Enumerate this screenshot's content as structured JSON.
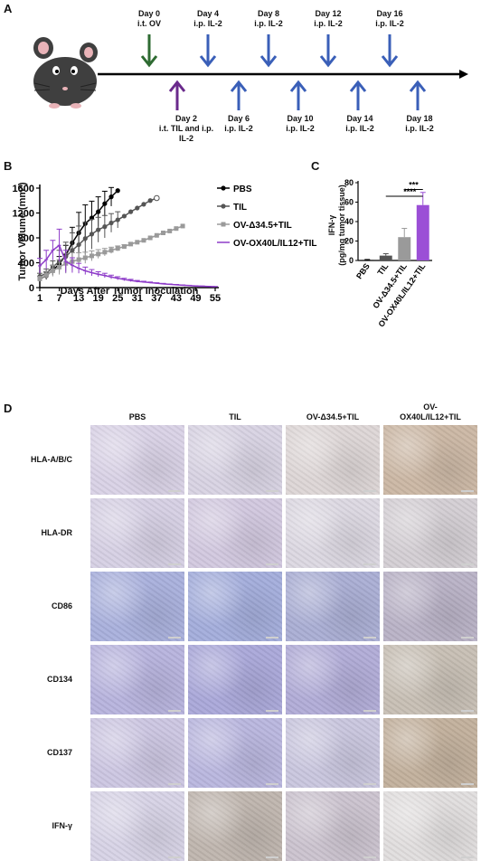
{
  "panel_letters": {
    "a": "A",
    "b": "B",
    "c": "C",
    "d": "D"
  },
  "timeline": {
    "top": [
      {
        "day": "Day 0",
        "treatment": "i.t. OV",
        "color": "#2e6b32"
      },
      {
        "day": "Day 4",
        "treatment": "i.p. IL-2",
        "color": "#3a5fb8"
      },
      {
        "day": "Day 8",
        "treatment": "i.p. IL-2",
        "color": "#3a5fb8"
      },
      {
        "day": "Day 12",
        "treatment": "i.p. IL-2",
        "color": "#3a5fb8"
      },
      {
        "day": "Day 16",
        "treatment": "i.p. IL-2",
        "color": "#3a5fb8"
      }
    ],
    "bottom": [
      {
        "day": "Day 2",
        "treatment": "i.t. TIL and i.p.",
        "treatment2": "IL-2",
        "color": "#6a2a8c"
      },
      {
        "day": "Day 6",
        "treatment": "i.p. IL-2",
        "treatment2": "",
        "color": "#3a5fb8"
      },
      {
        "day": "Day 10",
        "treatment": "i.p. IL-2",
        "treatment2": "",
        "color": "#3a5fb8"
      },
      {
        "day": "Day 14",
        "treatment": "i.p. IL-2",
        "treatment2": "",
        "color": "#3a5fb8"
      },
      {
        "day": "Day 18",
        "treatment": "i.p. IL-2",
        "treatment2": "",
        "color": "#3a5fb8"
      }
    ]
  },
  "chart_data": [
    {
      "type": "line",
      "xlabel": "Days After Tumor Inoculation",
      "ylabel": "Tumor Volume (mm³)",
      "x_ticks": [
        1,
        7,
        13,
        19,
        25,
        31,
        37,
        43,
        49,
        55
      ],
      "y_ticks": [
        0,
        400,
        800,
        1200,
        1600
      ],
      "xlim": [
        1,
        55
      ],
      "ylim": [
        0,
        1600
      ],
      "legend_position": "right",
      "series": [
        {
          "name": "PBS",
          "color": "#000000",
          "marker": "filled-circle",
          "x": [
            1,
            3,
            5,
            7,
            9,
            11,
            13,
            15,
            17,
            19,
            21,
            23,
            25
          ],
          "y": [
            140,
            190,
            280,
            380,
            520,
            720,
            880,
            1030,
            1120,
            1220,
            1350,
            1460,
            1560
          ],
          "err": [
            40,
            60,
            80,
            120,
            160,
            250,
            330,
            300,
            270,
            240,
            200,
            150,
            0
          ]
        },
        {
          "name": "TIL",
          "color": "#555555",
          "marker": "filled-circle-gray",
          "x": [
            1,
            3,
            5,
            7,
            9,
            11,
            13,
            15,
            17,
            19,
            21,
            23,
            25,
            27,
            29,
            31,
            33,
            35,
            37
          ],
          "y": [
            180,
            230,
            330,
            420,
            500,
            600,
            690,
            790,
            860,
            930,
            980,
            1040,
            1090,
            1150,
            1220,
            1280,
            1340,
            1400,
            1440
          ],
          "err": [
            50,
            70,
            100,
            180,
            230,
            280,
            300,
            260,
            240,
            200,
            180,
            150,
            130,
            0,
            0,
            0,
            0,
            0,
            0
          ]
        },
        {
          "name": "OV-Δ34.5+TIL",
          "color": "#9a9a9a",
          "marker": "filled-square",
          "x": [
            1,
            3,
            5,
            7,
            9,
            11,
            13,
            15,
            17,
            19,
            21,
            23,
            25,
            27,
            29,
            31,
            33,
            35,
            37,
            39,
            41,
            43,
            45
          ],
          "y": [
            140,
            200,
            270,
            330,
            390,
            420,
            450,
            480,
            510,
            540,
            570,
            600,
            630,
            660,
            700,
            730,
            760,
            800,
            840,
            880,
            910,
            950,
            990
          ],
          "err": [
            40,
            60,
            90,
            120,
            160,
            140,
            110,
            90,
            80,
            70,
            60,
            50,
            40,
            30,
            20,
            0,
            0,
            0,
            0,
            0,
            0,
            0,
            0
          ]
        },
        {
          "name": "OV-OX40L/IL12+TIL",
          "color": "#8e3cc9",
          "marker": "plus",
          "x": [
            1,
            3,
            5,
            7,
            9,
            11,
            13,
            15,
            17,
            19,
            21,
            23,
            25,
            27,
            29,
            31,
            33,
            35,
            37,
            39,
            41,
            43,
            45,
            47,
            49,
            51,
            53,
            55
          ],
          "y": [
            350,
            450,
            600,
            680,
            420,
            360,
            310,
            270,
            240,
            215,
            195,
            170,
            150,
            130,
            115,
            100,
            90,
            80,
            70,
            60,
            52,
            45,
            38,
            32,
            26,
            22,
            18,
            15
          ],
          "err": [
            120,
            150,
            160,
            260,
            180,
            120,
            80,
            60,
            50,
            40,
            35,
            30,
            25,
            20,
            18,
            15,
            12,
            10,
            8,
            8,
            6,
            6,
            5,
            5,
            4,
            4,
            3,
            3
          ]
        }
      ]
    },
    {
      "type": "bar",
      "ylabel_line1": "IFN-γ",
      "ylabel_line2": "(pg/mg tumor tissue)",
      "categories": [
        "PBS",
        "TIL",
        "OV-Δ34.5+TIL",
        "OV-OX40L/IL12+TIL"
      ],
      "values": [
        0.5,
        5,
        24,
        57
      ],
      "errors": [
        0.5,
        2,
        9,
        13
      ],
      "colors": [
        "#000000",
        "#555555",
        "#9a9a9a",
        "#9b4fd6"
      ],
      "y_ticks": [
        0,
        20,
        40,
        60,
        80
      ],
      "ylim": [
        0,
        80
      ],
      "annotations": [
        {
          "text": "***",
          "from": 2,
          "to": 3
        },
        {
          "text": "****",
          "from": 1,
          "to": 3
        }
      ]
    }
  ],
  "ihc": {
    "columns": [
      "PBS",
      "TIL",
      "OV-Δ34.5+TIL",
      "OV-OX40L/IL12+TIL"
    ],
    "column_last_line1": "OV-",
    "column_last_line2": "OX40L/IL12+TIL",
    "rows": [
      "HLA-A/B/C",
      "HLA-DR",
      "CD86",
      "CD134",
      "CD137",
      "IFN-γ"
    ],
    "tile_colors": [
      [
        "#d9d2e6",
        "#d8d3e3",
        "#ddd6d6",
        "#cbb7a4"
      ],
      [
        "#d6d0e4",
        "#d2c8df",
        "#dcd8e2",
        "#d4cfd4"
      ],
      [
        "#a9b0dc",
        "#a3addb",
        "#aaaed4",
        "#b9b2c6"
      ],
      [
        "#b7b3dd",
        "#aaa8d9",
        "#b1acd7",
        "#c7bfb4"
      ],
      [
        "#ccc6e2",
        "#b9b6de",
        "#c9c6de",
        "#c2b09c"
      ],
      [
        "#d7d3e6",
        "#bfb5ae",
        "#cbc3cf",
        "#e1dede"
      ]
    ]
  }
}
